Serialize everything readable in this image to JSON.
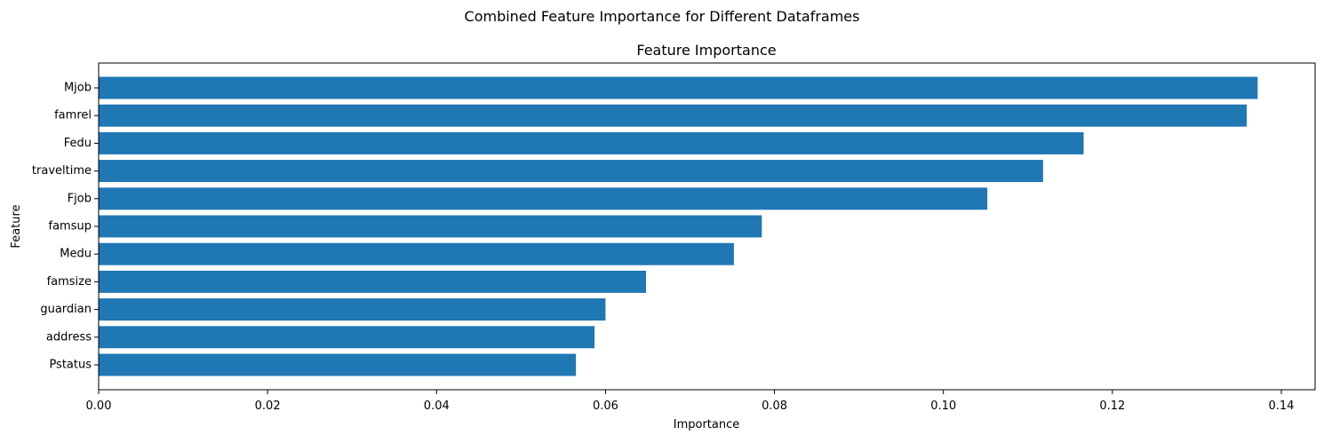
{
  "chart_data": {
    "type": "bar",
    "orientation": "horizontal",
    "suptitle": "Combined Feature Importance for Different Dataframes",
    "title": "Feature Importance",
    "xlabel": "Importance",
    "ylabel": "Feature",
    "categories": [
      "Mjob",
      "famrel",
      "Fedu",
      "traveltime",
      "Fjob",
      "famsup",
      "Medu",
      "famsize",
      "guardian",
      "address",
      "Pstatus"
    ],
    "values": [
      0.1372,
      0.1359,
      0.1166,
      0.1118,
      0.1052,
      0.0785,
      0.0752,
      0.0648,
      0.06,
      0.0587,
      0.0565
    ],
    "xlim": [
      0,
      0.144
    ],
    "xticks": [
      0.0,
      0.02,
      0.04,
      0.06,
      0.08,
      0.1,
      0.12,
      0.14
    ],
    "xtick_labels": [
      "0.00",
      "0.02",
      "0.04",
      "0.06",
      "0.08",
      "0.10",
      "0.12",
      "0.14"
    ],
    "grid": false,
    "bar_color": "#1f77b4"
  }
}
